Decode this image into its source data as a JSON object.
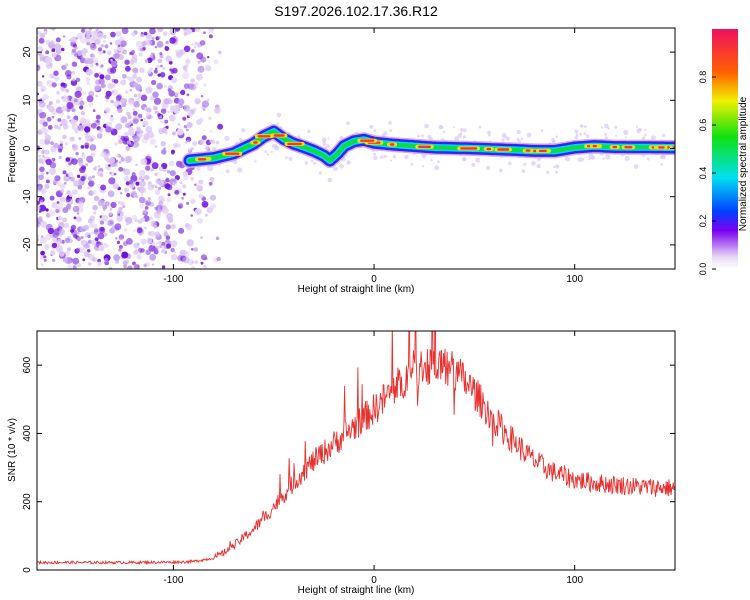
{
  "title": "S197.2026.102.17.36.R12",
  "chart_data": [
    {
      "type": "heatmap",
      "xlabel": "Height of straight line (km)",
      "ylabel": "Frequency (Hz)",
      "xlim": [
        -168,
        150
      ],
      "ylim": [
        -25,
        25
      ],
      "x_ticks": [
        -100,
        0,
        100
      ],
      "y_ticks": [
        -20,
        -10,
        0,
        10,
        20
      ],
      "noise_region_x": [
        -168,
        -82
      ],
      "ridge": {
        "x": [
          -92,
          -80,
          -70,
          -60,
          -55,
          -50,
          -45,
          -40,
          -35,
          -30,
          -25,
          -22,
          -18,
          -15,
          -10,
          -5,
          0,
          10,
          20,
          30,
          50,
          70,
          80,
          90,
          100,
          110,
          120,
          150
        ],
        "freq": [
          -2.5,
          -2,
          -1,
          1,
          2.5,
          3.5,
          2,
          1,
          0.3,
          -0.5,
          -1.5,
          -2.5,
          -1,
          0.5,
          1.5,
          1.8,
          1.2,
          0.8,
          0.5,
          0.2,
          0,
          -0.3,
          -0.5,
          -0.5,
          0.2,
          0.5,
          0.3,
          0.2
        ]
      },
      "colorbar": {
        "label": "Normalized spectral amplitude",
        "ticks": [
          "0.0",
          "0.2",
          "0.4",
          "0.6",
          "0.8"
        ],
        "range": [
          0,
          1
        ]
      }
    },
    {
      "type": "line",
      "xlabel": "Height of straight line (km)",
      "ylabel": "SNR (10 * v/v)",
      "xlim": [
        -168,
        150
      ],
      "ylim": [
        0,
        700
      ],
      "x_ticks": [
        -100,
        0,
        100
      ],
      "y_ticks": [
        0,
        200,
        400,
        600
      ],
      "color": "#e8302e",
      "series": [
        {
          "name": "SNR",
          "x": [
            -168,
            -140,
            -120,
            -100,
            -90,
            -80,
            -75,
            -70,
            -65,
            -60,
            -55,
            -50,
            -45,
            -40,
            -35,
            -30,
            -25,
            -20,
            -15,
            -10,
            -5,
            0,
            5,
            10,
            15,
            20,
            25,
            30,
            35,
            40,
            45,
            50,
            55,
            60,
            65,
            70,
            75,
            80,
            85,
            90,
            95,
            100,
            110,
            120,
            130,
            140,
            150
          ],
          "values": [
            22,
            22,
            22,
            23,
            25,
            35,
            50,
            70,
            95,
            120,
            150,
            185,
            220,
            255,
            290,
            320,
            345,
            370,
            395,
            420,
            445,
            470,
            500,
            530,
            560,
            585,
            600,
            605,
            600,
            580,
            555,
            520,
            480,
            440,
            405,
            375,
            345,
            320,
            300,
            285,
            275,
            265,
            255,
            250,
            245,
            242,
            240
          ]
        }
      ]
    }
  ]
}
